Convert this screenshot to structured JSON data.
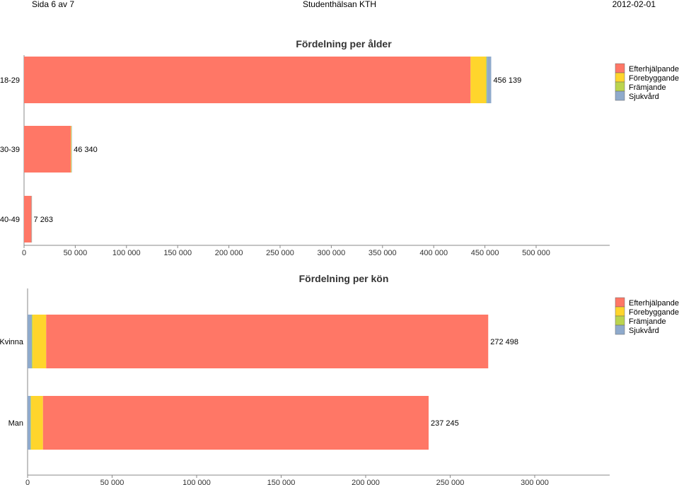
{
  "header": {
    "left": "Sida 6 av 7",
    "center": "Studenthälsan KTH",
    "right": "2012-02-01"
  },
  "chart_data": [
    {
      "type": "bar",
      "orientation": "horizontal",
      "stacked": true,
      "title": "Fördelning per ålder",
      "categories": [
        "18-29",
        "30-39",
        "40-49"
      ],
      "series": [
        {
          "name": "Efterhjälpande",
          "color": "#FF7766",
          "values": [
            436000,
            45600,
            7200
          ]
        },
        {
          "name": "Förebyggande",
          "color": "#FFD52C",
          "values": [
            15000,
            600,
            50
          ]
        },
        {
          "name": "Främjande",
          "color": "#BBD44E",
          "values": [
            800,
            50,
            5
          ]
        },
        {
          "name": "Sjukvård",
          "color": "#8FAACC",
          "values": [
            4339,
            90,
            8
          ]
        }
      ],
      "totals": [
        "456 139",
        "46 340",
        "7 263"
      ],
      "xlim": [
        0,
        500000
      ],
      "xticks": [
        "0",
        "50 000",
        "100 000",
        "150 000",
        "200 000",
        "250 000",
        "300 000",
        "350 000",
        "400 000",
        "450 000",
        "500 000"
      ],
      "legend": "top-right"
    },
    {
      "type": "bar",
      "orientation": "horizontal",
      "stacked": true,
      "title": "Fördelning per kön",
      "categories": [
        "Kvinna",
        "Man"
      ],
      "series": [
        {
          "name": "Sjukvård",
          "color": "#8FAACC",
          "values": [
            2500,
            1800
          ]
        },
        {
          "name": "Främjande",
          "color": "#BBD44E",
          "values": [
            500,
            300
          ]
        },
        {
          "name": "Förebyggande",
          "color": "#FFD52C",
          "values": [
            8000,
            7000
          ]
        },
        {
          "name": "Efterhjälpande",
          "color": "#FF7766",
          "values": [
            261498,
            228145
          ]
        }
      ],
      "totals": [
        "272 498",
        "237 245"
      ],
      "xlim": [
        0,
        300000
      ],
      "xticks": [
        "0",
        "50 000",
        "100 000",
        "150 000",
        "200 000",
        "250 000",
        "300 000"
      ],
      "legend": "top-right",
      "legend_order": [
        "Efterhjälpande",
        "Förebyggande",
        "Främjande",
        "Sjukvård"
      ]
    }
  ]
}
